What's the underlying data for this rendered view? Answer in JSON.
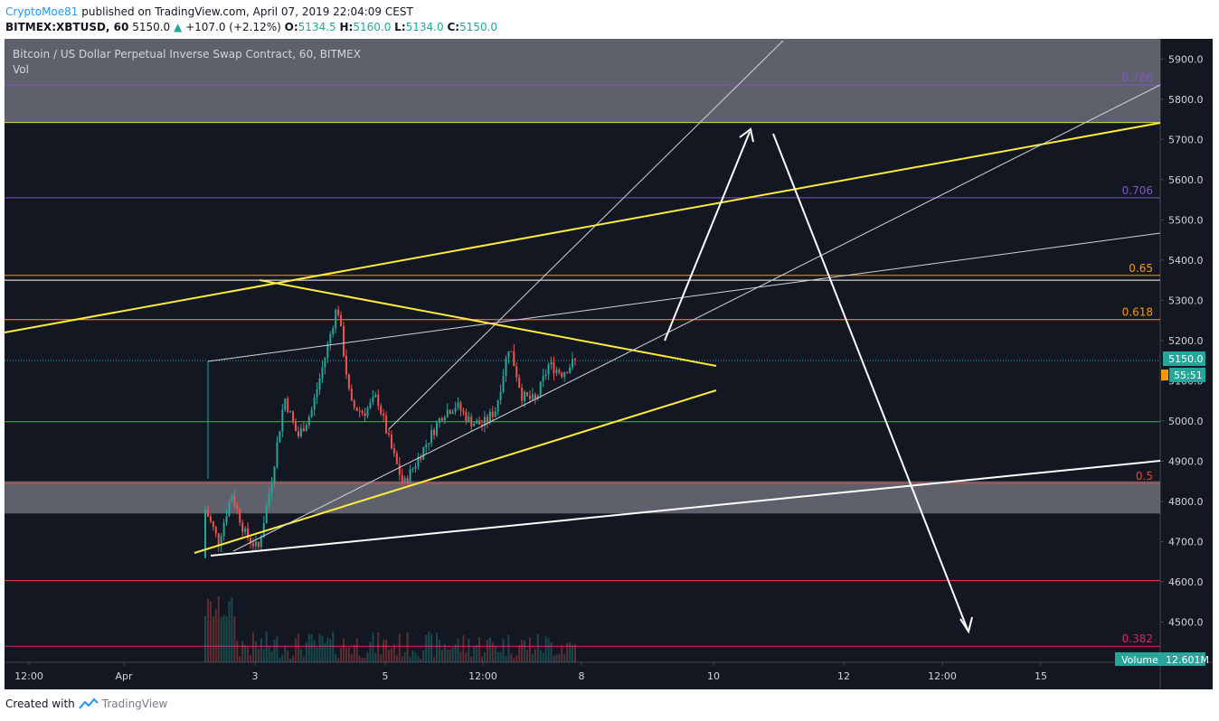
{
  "header": {
    "author": "CryptoMoe81",
    "published": "published on TradingView.com, April 07, 2019 22:04:09 CEST",
    "symbol": "BITMEX:XBTUSD, 60",
    "last": "5150.0",
    "change": "+107.0 (+2.12%)",
    "o_label": "O:",
    "o": "5134.5",
    "h_label": "H:",
    "h": "5160.0",
    "l_label": "L:",
    "l": "5134.0",
    "c_label": "C:",
    "c": "5150.0"
  },
  "chart_title": "Bitcoin / US Dollar Perpetual Inverse Swap Contract, 60, BITMEX",
  "vol_label": "Vol",
  "volume_badge": {
    "label": "Volume",
    "value": "12.601M"
  },
  "price_badge": "5150.0",
  "countdown_badge": "55:51",
  "footer": {
    "created": "Created with",
    "brand": "TradingView"
  },
  "colors": {
    "background": "#131722",
    "up": "#26a69a",
    "down": "#ef5350",
    "yellow": "#ffeb3b",
    "white": "#ffffff",
    "zone": "#787b86",
    "fib_786": "#7e57c2",
    "fib_706": "#7e57c2",
    "fib_65": "#ff9800",
    "fib_618": "#ff9800",
    "fib_5": "#f44336",
    "fib_382": "#e91e63",
    "green_line": "#4caf50"
  },
  "chart_data": {
    "type": "candlestick",
    "y_axis": {
      "min": 4400,
      "max": 5950,
      "ticks": [
        4500,
        4600,
        4700,
        4800,
        4900,
        5000,
        5100,
        5200,
        5300,
        5400,
        5500,
        5600,
        5700,
        5800,
        5900
      ],
      "tick_labels": [
        "4500.0",
        "4600.0",
        "4700.0",
        "4800.0",
        "4900.0",
        "5000.0",
        "5100.0",
        "5200.0",
        "5300.0",
        "5400.0",
        "5500.0",
        "5600.0",
        "5700.0",
        "5800.0",
        "5900.0"
      ]
    },
    "x_axis": {
      "labels": [
        "12:00",
        "Apr",
        "3",
        "5",
        "12:00",
        "8",
        "10",
        "12",
        "12:00",
        "15"
      ]
    },
    "fib_levels": [
      {
        "label": "0.786",
        "price": 5835,
        "color": "#7e57c2"
      },
      {
        "label": "0.706",
        "price": 5555,
        "color": "#7e57c2"
      },
      {
        "label": "0.65",
        "price": 5362,
        "color": "#ff9800"
      },
      {
        "label": "0.618",
        "price": 5252,
        "color": "#ff9800"
      },
      {
        "label": "0.5",
        "price": 4845,
        "color": "#f44336"
      },
      {
        "label": "0.382",
        "price": 4440,
        "color": "#e91e63"
      }
    ],
    "horizontal_lines": [
      {
        "price": 5350,
        "color": "#ffffff"
      },
      {
        "price": 4998,
        "color": "#4caf50"
      },
      {
        "price": 4603,
        "color": "#f44336"
      },
      {
        "price": 5742,
        "color": "#cddc39"
      }
    ],
    "zones": [
      {
        "from": 5742,
        "to": 5950
      },
      {
        "from": 4770,
        "to": 4850
      }
    ],
    "anchors": [
      {
        "o": 4660,
        "c": 4780
      },
      {
        "o": 4780,
        "c": 4700
      },
      {
        "o": 4700,
        "c": 4820
      },
      {
        "o": 4820,
        "c": 4720
      },
      {
        "o": 4720,
        "c": 4680
      },
      {
        "o": 4680,
        "c": 4850
      },
      {
        "o": 4850,
        "c": 5060
      },
      {
        "o": 5060,
        "c": 4960
      },
      {
        "o": 4960,
        "c": 5020
      },
      {
        "o": 5020,
        "c": 5150
      },
      {
        "o": 5150,
        "c": 5290
      },
      {
        "o": 5290,
        "c": 5040
      },
      {
        "o": 5040,
        "c": 5020
      },
      {
        "o": 5020,
        "c": 5060
      },
      {
        "o": 5060,
        "c": 4940
      },
      {
        "o": 4940,
        "c": 4840
      },
      {
        "o": 4840,
        "c": 4900
      },
      {
        "o": 4900,
        "c": 4960
      },
      {
        "o": 4960,
        "c": 5020
      },
      {
        "o": 5020,
        "c": 5040
      },
      {
        "o": 5040,
        "c": 5000
      },
      {
        "o": 5000,
        "c": 4990
      },
      {
        "o": 4990,
        "c": 5030
      },
      {
        "o": 5030,
        "c": 5190
      },
      {
        "o": 5190,
        "c": 5060
      },
      {
        "o": 5060,
        "c": 5050
      },
      {
        "o": 5050,
        "c": 5140
      },
      {
        "o": 5140,
        "c": 5120
      },
      {
        "o": 5120,
        "c": 5150
      }
    ],
    "last_price": 5150,
    "volume_bars": 140
  }
}
